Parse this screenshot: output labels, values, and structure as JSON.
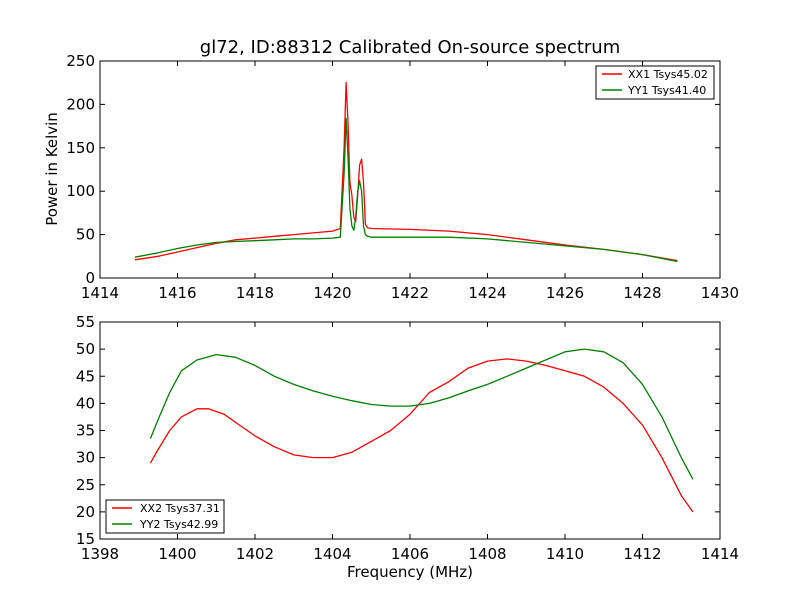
{
  "figure": {
    "title": "gl72, ID:88312 Calibrated On-source spectrum"
  },
  "chart_data": [
    {
      "type": "line",
      "title": "gl72, ID:88312 Calibrated On-source spectrum",
      "xlabel": "",
      "ylabel": "Power in Kelvin",
      "xlim": [
        1414,
        1430
      ],
      "ylim": [
        0,
        250
      ],
      "xticks": [
        1414,
        1416,
        1418,
        1420,
        1422,
        1424,
        1426,
        1428,
        1430
      ],
      "yticks": [
        0,
        50,
        100,
        150,
        200,
        250
      ],
      "legend_position": "top-right",
      "series": [
        {
          "name": "XX1 Tsys45.02",
          "color": "#ff0000",
          "points": [
            [
              1414.9,
              21
            ],
            [
              1415.5,
              25
            ],
            [
              1416,
              30
            ],
            [
              1416.5,
              35
            ],
            [
              1417,
              40
            ],
            [
              1417.5,
              44
            ],
            [
              1418,
              46
            ],
            [
              1418.5,
              48
            ],
            [
              1419,
              50
            ],
            [
              1419.5,
              52
            ],
            [
              1420,
              54
            ],
            [
              1420.2,
              57
            ],
            [
              1420.3,
              150
            ],
            [
              1420.35,
              225
            ],
            [
              1420.4,
              180
            ],
            [
              1420.45,
              110
            ],
            [
              1420.5,
              95
            ],
            [
              1420.55,
              70
            ],
            [
              1420.6,
              65
            ],
            [
              1420.65,
              95
            ],
            [
              1420.7,
              130
            ],
            [
              1420.75,
              137
            ],
            [
              1420.8,
              110
            ],
            [
              1420.85,
              62
            ],
            [
              1420.9,
              58
            ],
            [
              1421,
              57
            ],
            [
              1422,
              56
            ],
            [
              1423,
              54
            ],
            [
              1424,
              50
            ],
            [
              1425,
              44
            ],
            [
              1426,
              38
            ],
            [
              1427,
              33
            ],
            [
              1428,
              27
            ],
            [
              1428.9,
              20
            ]
          ]
        },
        {
          "name": "YY1 Tsys41.40",
          "color": "#008000",
          "points": [
            [
              1414.9,
              24
            ],
            [
              1415.5,
              29
            ],
            [
              1416,
              34
            ],
            [
              1416.5,
              38
            ],
            [
              1417,
              41
            ],
            [
              1417.5,
              42
            ],
            [
              1418,
              43
            ],
            [
              1418.5,
              44
            ],
            [
              1419,
              45
            ],
            [
              1419.5,
              45
            ],
            [
              1420,
              46
            ],
            [
              1420.2,
              47
            ],
            [
              1420.3,
              120
            ],
            [
              1420.35,
              184
            ],
            [
              1420.4,
              140
            ],
            [
              1420.45,
              80
            ],
            [
              1420.5,
              60
            ],
            [
              1420.55,
              55
            ],
            [
              1420.6,
              70
            ],
            [
              1420.65,
              100
            ],
            [
              1420.7,
              112
            ],
            [
              1420.75,
              100
            ],
            [
              1420.8,
              60
            ],
            [
              1420.85,
              50
            ],
            [
              1420.9,
              48
            ],
            [
              1421,
              47
            ],
            [
              1422,
              47
            ],
            [
              1423,
              47
            ],
            [
              1424,
              45
            ],
            [
              1425,
              41
            ],
            [
              1426,
              37
            ],
            [
              1427,
              33
            ],
            [
              1428,
              27
            ],
            [
              1428.9,
              19
            ]
          ]
        }
      ]
    },
    {
      "type": "line",
      "title": "",
      "xlabel": "Frequency (MHz)",
      "ylabel": "",
      "xlim": [
        1398,
        1414
      ],
      "ylim": [
        15,
        55
      ],
      "xticks": [
        1398,
        1400,
        1402,
        1404,
        1406,
        1408,
        1410,
        1412,
        1414
      ],
      "yticks": [
        15,
        20,
        25,
        30,
        35,
        40,
        45,
        50,
        55
      ],
      "legend_position": "bottom-left",
      "series": [
        {
          "name": "XX2 Tsys37.31",
          "color": "#ff0000",
          "points": [
            [
              1399.3,
              29
            ],
            [
              1399.5,
              31.5
            ],
            [
              1399.8,
              35
            ],
            [
              1400.1,
              37.5
            ],
            [
              1400.5,
              39
            ],
            [
              1400.8,
              39
            ],
            [
              1401.2,
              38
            ],
            [
              1401.6,
              36
            ],
            [
              1402,
              34
            ],
            [
              1402.5,
              32
            ],
            [
              1403,
              30.5
            ],
            [
              1403.5,
              30
            ],
            [
              1404,
              30
            ],
            [
              1404.5,
              31
            ],
            [
              1405,
              33
            ],
            [
              1405.5,
              35
            ],
            [
              1406,
              38
            ],
            [
              1406.5,
              42
            ],
            [
              1407,
              44
            ],
            [
              1407.5,
              46.5
            ],
            [
              1408,
              47.8
            ],
            [
              1408.5,
              48.2
            ],
            [
              1409,
              47.8
            ],
            [
              1409.5,
              47
            ],
            [
              1410,
              46
            ],
            [
              1410.5,
              45
            ],
            [
              1411,
              43
            ],
            [
              1411.5,
              40
            ],
            [
              1412,
              36
            ],
            [
              1412.5,
              30
            ],
            [
              1413,
              23
            ],
            [
              1413.3,
              20
            ]
          ]
        },
        {
          "name": "YY2 Tsys42.99",
          "color": "#008000",
          "points": [
            [
              1399.3,
              33.5
            ],
            [
              1399.5,
              37
            ],
            [
              1399.8,
              42
            ],
            [
              1400.1,
              46
            ],
            [
              1400.5,
              48
            ],
            [
              1401,
              49
            ],
            [
              1401.5,
              48.5
            ],
            [
              1402,
              47
            ],
            [
              1402.5,
              45
            ],
            [
              1403,
              43.5
            ],
            [
              1403.5,
              42.3
            ],
            [
              1404,
              41.3
            ],
            [
              1404.5,
              40.5
            ],
            [
              1405,
              39.8
            ],
            [
              1405.5,
              39.5
            ],
            [
              1406,
              39.5
            ],
            [
              1406.5,
              40
            ],
            [
              1407,
              41
            ],
            [
              1407.5,
              42.3
            ],
            [
              1408,
              43.5
            ],
            [
              1408.5,
              45
            ],
            [
              1409,
              46.5
            ],
            [
              1409.5,
              48
            ],
            [
              1410,
              49.5
            ],
            [
              1410.5,
              50
            ],
            [
              1411,
              49.5
            ],
            [
              1411.5,
              47.5
            ],
            [
              1412,
              43.5
            ],
            [
              1412.5,
              37.5
            ],
            [
              1413,
              30
            ],
            [
              1413.3,
              26
            ]
          ]
        }
      ]
    }
  ]
}
